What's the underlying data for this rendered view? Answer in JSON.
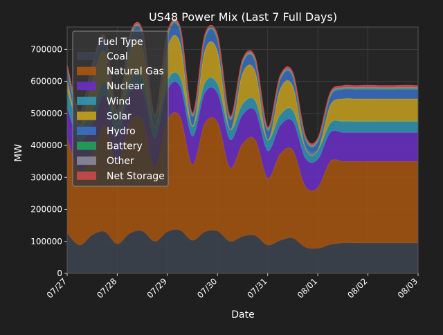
{
  "chart_data": {
    "type": "area",
    "stacked": true,
    "title": "US48 Power Mix (Last 7 Full Days)",
    "xlabel": "Date",
    "ylabel": "MW",
    "xlim": [
      "07/27",
      "08/03"
    ],
    "ylim": [
      0,
      770000
    ],
    "yticks": [
      0,
      100000,
      200000,
      300000,
      400000,
      500000,
      600000,
      700000
    ],
    "ytick_labels": [
      "0",
      "100000",
      "200000",
      "300000",
      "400000",
      "500000",
      "600000",
      "700000"
    ],
    "xtick_labels": [
      "07/27",
      "07/28",
      "07/29",
      "07/30",
      "07/31",
      "08/01",
      "08/02",
      "08/03"
    ],
    "grid": true,
    "legend": {
      "title": "Fuel Type",
      "placement": "top-left"
    },
    "x_days": [
      0.0,
      0.25,
      0.5,
      0.75,
      1.0,
      1.25,
      1.5,
      1.75,
      2.0,
      2.25,
      2.5,
      2.75,
      3.0,
      3.25,
      3.5,
      3.75,
      4.0,
      4.25,
      4.5,
      4.75,
      5.0,
      5.25,
      5.5,
      5.75,
      6.0,
      6.25,
      6.5,
      6.75,
      7.0
    ],
    "series": [
      {
        "name": "Coal",
        "color": "#3d4450",
        "values": [
          125000,
          88000,
          120000,
          130000,
          92000,
          125000,
          132000,
          100000,
          130000,
          135000,
          103000,
          130000,
          132000,
          100000,
          115000,
          118000,
          88000,
          103000,
          110000,
          82000,
          78000,
          90000,
          95000,
          95000,
          95000,
          95000,
          95000,
          95000,
          95000
        ]
      },
      {
        "name": "Natural Gas",
        "color": "#a8560e",
        "values": [
          298000,
          232000,
          250000,
          332000,
          248000,
          345000,
          348000,
          232000,
          348000,
          355000,
          237000,
          340000,
          340000,
          230000,
          290000,
          300000,
          210000,
          270000,
          275000,
          190000,
          190000,
          260000,
          255000,
          255000,
          255000,
          255000,
          255000,
          255000,
          255000
        ]
      },
      {
        "name": "Nuclear",
        "color": "#6a2fc6",
        "values": [
          95000,
          93000,
          95000,
          95000,
          90000,
          95000,
          95000,
          90000,
          95000,
          95000,
          88000,
          95000,
          90000,
          88000,
          90000,
          90000,
          85000,
          88000,
          90000,
          88000,
          88000,
          90000,
          90000,
          90000,
          90000,
          90000,
          90000,
          90000,
          90000
        ]
      },
      {
        "name": "Wind",
        "color": "#3197b4",
        "values": [
          55000,
          50000,
          45000,
          40000,
          38000,
          35000,
          35000,
          35000,
          30000,
          30000,
          32000,
          32000,
          30000,
          32000,
          35000,
          32000,
          35000,
          35000,
          35000,
          35000,
          30000,
          30000,
          35000,
          35000,
          35000,
          35000,
          35000,
          35000,
          35000
        ]
      },
      {
        "name": "Solar",
        "color": "#c5a11e",
        "values": [
          30000,
          0,
          95000,
          95000,
          0,
          95000,
          100000,
          0,
          100000,
          105000,
          0,
          100000,
          100000,
          0,
          95000,
          90000,
          0,
          80000,
          75000,
          0,
          0,
          55000,
          70000,
          70000,
          70000,
          70000,
          70000,
          70000,
          70000
        ]
      },
      {
        "name": "Hydro",
        "color": "#3a6fc4",
        "values": [
          35000,
          30000,
          35000,
          38000,
          30000,
          38000,
          38000,
          30000,
          38000,
          38000,
          30000,
          38000,
          38000,
          30000,
          32000,
          32000,
          28000,
          30000,
          30000,
          25000,
          25000,
          28000,
          30000,
          30000,
          30000,
          30000,
          30000,
          30000,
          30000
        ]
      },
      {
        "name": "Battery",
        "color": "#22a15a",
        "values": [
          2000,
          1000,
          1000,
          2000,
          1000,
          1000,
          2000,
          1000,
          1000,
          2000,
          1000,
          1000,
          2000,
          1000,
          1000,
          2000,
          1000,
          1000,
          2000,
          1000,
          1000,
          2000,
          1000,
          1000,
          2000,
          1000,
          1000,
          2000,
          1000
        ]
      },
      {
        "name": "Other",
        "color": "#8a8a98",
        "values": [
          5000,
          5000,
          5000,
          5000,
          5000,
          5000,
          5000,
          5000,
          5000,
          5000,
          5000,
          5000,
          5000,
          5000,
          5000,
          5000,
          5000,
          5000,
          5000,
          5000,
          5000,
          5000,
          5000,
          5000,
          5000,
          5000,
          5000,
          5000,
          5000
        ]
      },
      {
        "name": "Net Storage",
        "color": "#c84a4a",
        "values": [
          5000,
          4000,
          5000,
          5000,
          4000,
          5000,
          5000,
          4000,
          5000,
          5000,
          4000,
          5000,
          5000,
          4000,
          5000,
          5000,
          4000,
          5000,
          5000,
          4000,
          4000,
          5000,
          5000,
          5000,
          5000,
          5000,
          5000,
          5000,
          5000
        ]
      }
    ]
  }
}
